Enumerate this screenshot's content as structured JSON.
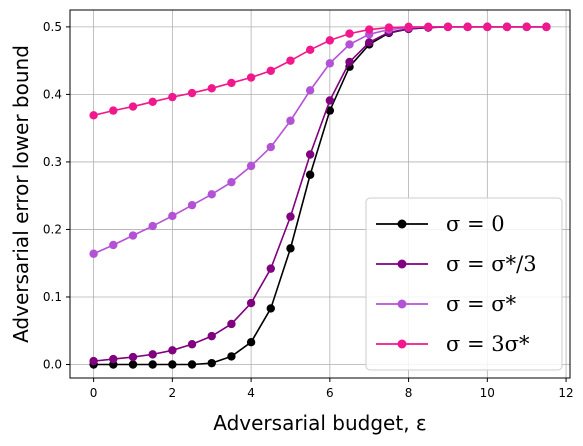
{
  "chart_data": {
    "type": "line",
    "xlabel": "Adversarial budget, ε",
    "ylabel": "Adversarial error lower bound",
    "xlim": [
      -0.6,
      12.1
    ],
    "ylim": [
      -0.02,
      0.525
    ],
    "xticks": [
      0,
      2,
      4,
      6,
      8,
      10,
      12
    ],
    "yticks": [
      0.0,
      0.1,
      0.2,
      0.3,
      0.4,
      0.5
    ],
    "xtick_labels": [
      "0",
      "2",
      "4",
      "6",
      "8",
      "10",
      "12"
    ],
    "ytick_labels": [
      "0.0",
      "0.1",
      "0.2",
      "0.3",
      "0.4",
      "0.5"
    ],
    "grid": true,
    "legend_position": "lower-right",
    "x": [
      0,
      0.5,
      1,
      1.5,
      2,
      2.5,
      3,
      3.5,
      4,
      4.5,
      5,
      5.5,
      6,
      6.5,
      7,
      7.5,
      8,
      8.5,
      9,
      9.5,
      10,
      10.5,
      11,
      11.5
    ],
    "series": [
      {
        "name": "σ = 0",
        "color": "#000000",
        "values": [
          0.0,
          0.0,
          0.0,
          0.0,
          0.0,
          0.0,
          0.002,
          0.012,
          0.033,
          0.083,
          0.172,
          0.281,
          0.376,
          0.441,
          0.474,
          0.491,
          0.497,
          0.499,
          0.5,
          0.5,
          0.5,
          0.5,
          0.5,
          0.5
        ]
      },
      {
        "name": "σ = σ*/3",
        "color": "#800080",
        "values": [
          0.005,
          0.008,
          0.011,
          0.015,
          0.021,
          0.03,
          0.042,
          0.06,
          0.091,
          0.142,
          0.219,
          0.311,
          0.391,
          0.448,
          0.477,
          0.492,
          0.497,
          0.499,
          0.5,
          0.5,
          0.5,
          0.5,
          0.5,
          0.5
        ]
      },
      {
        "name": "σ = σ*",
        "color": "#b452d6",
        "values": [
          0.164,
          0.177,
          0.191,
          0.205,
          0.22,
          0.236,
          0.252,
          0.27,
          0.294,
          0.322,
          0.361,
          0.406,
          0.446,
          0.474,
          0.489,
          0.496,
          0.499,
          0.5,
          0.5,
          0.5,
          0.5,
          0.5,
          0.5,
          0.5
        ]
      },
      {
        "name": "σ = 3σ*",
        "color": "#f0188c",
        "values": [
          0.369,
          0.376,
          0.382,
          0.389,
          0.396,
          0.402,
          0.409,
          0.417,
          0.425,
          0.435,
          0.45,
          0.466,
          0.48,
          0.49,
          0.496,
          0.499,
          0.5,
          0.5,
          0.5,
          0.5,
          0.5,
          0.5,
          0.5,
          0.5
        ]
      }
    ]
  }
}
